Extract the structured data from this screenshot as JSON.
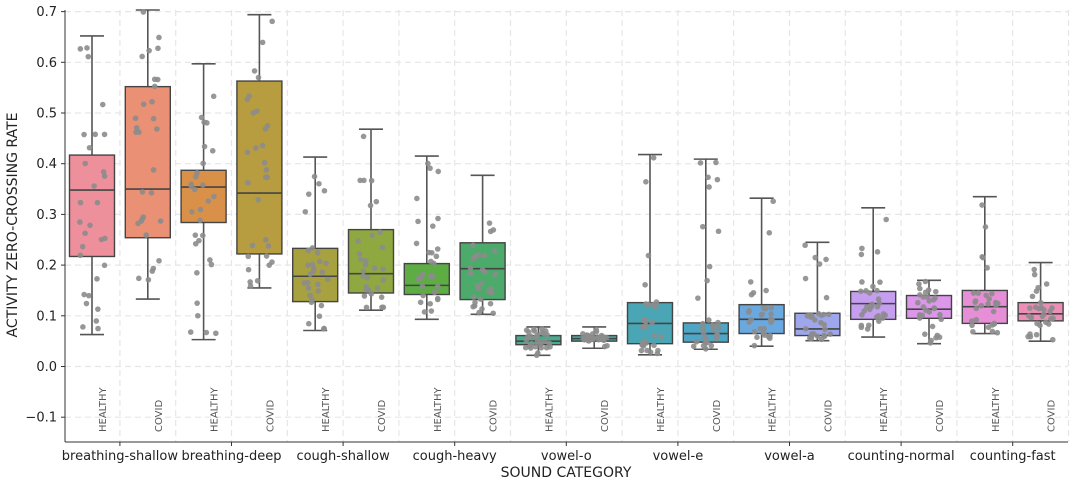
{
  "chart_data": {
    "type": "box",
    "xlabel": "SOUND CATEGORY",
    "ylabel": "ACTIVITY ZERO-CROSSING RATE",
    "ylim": [
      -0.15,
      0.71
    ],
    "yticks": [
      -0.1,
      0.0,
      0.1,
      0.2,
      0.3,
      0.4,
      0.5,
      0.6,
      0.7
    ],
    "ytick_labels": [
      "−0.1",
      "0.0",
      "0.1",
      "0.2",
      "0.3",
      "0.4",
      "0.5",
      "0.6",
      "0.7"
    ],
    "grid": true,
    "categories": [
      "breathing-shallow",
      "breathing-deep",
      "cough-shallow",
      "cough-heavy",
      "vowel-o",
      "vowel-e",
      "vowel-a",
      "counting-normal",
      "counting-fast"
    ],
    "group_labels": [
      "HEALTHY",
      "COVID"
    ],
    "series": [
      {
        "name": "breathing-shallow HEALTHY",
        "color": "#ee8f9c",
        "whisker_low": 0.063,
        "q1": 0.217,
        "median": 0.348,
        "q3": 0.417,
        "whisker_high": 0.652
      },
      {
        "name": "breathing-shallow COVID",
        "color": "#ea9075",
        "whisker_low": 0.133,
        "q1": 0.254,
        "median": 0.35,
        "q3": 0.552,
        "whisker_high": 0.71
      },
      {
        "name": "breathing-deep HEALTHY",
        "color": "#d9914a",
        "whisker_low": 0.053,
        "q1": 0.284,
        "median": 0.354,
        "q3": 0.387,
        "whisker_high": 0.597
      },
      {
        "name": "breathing-deep COVID",
        "color": "#b89c40",
        "whisker_low": 0.155,
        "q1": 0.222,
        "median": 0.342,
        "q3": 0.563,
        "whisker_high": 0.694
      },
      {
        "name": "cough-shallow HEALTHY",
        "color": "#a8a140",
        "whisker_low": 0.071,
        "q1": 0.128,
        "median": 0.178,
        "q3": 0.233,
        "whisker_high": 0.413
      },
      {
        "name": "cough-shallow COVID",
        "color": "#8fa840",
        "whisker_low": 0.111,
        "q1": 0.145,
        "median": 0.183,
        "q3": 0.27,
        "whisker_high": 0.468
      },
      {
        "name": "cough-heavy HEALTHY",
        "color": "#5eac44",
        "whisker_low": 0.093,
        "q1": 0.142,
        "median": 0.16,
        "q3": 0.203,
        "whisker_high": 0.415
      },
      {
        "name": "cough-heavy COVID",
        "color": "#4caa6a",
        "whisker_low": 0.103,
        "q1": 0.132,
        "median": 0.193,
        "q3": 0.244,
        "whisker_high": 0.377
      },
      {
        "name": "vowel-o HEALTHY",
        "color": "#4aa98e",
        "whisker_low": 0.022,
        "q1": 0.043,
        "median": 0.05,
        "q3": 0.061,
        "whisker_high": 0.078
      },
      {
        "name": "vowel-o COVID",
        "color": "#48a8a2",
        "whisker_low": 0.036,
        "q1": 0.05,
        "median": 0.055,
        "q3": 0.061,
        "whisker_high": 0.078
      },
      {
        "name": "vowel-e HEALTHY",
        "color": "#4aa6b4",
        "whisker_low": 0.023,
        "q1": 0.045,
        "median": 0.085,
        "q3": 0.126,
        "whisker_high": 0.418
      },
      {
        "name": "vowel-e COVID",
        "color": "#4ea5c4",
        "whisker_low": 0.034,
        "q1": 0.048,
        "median": 0.065,
        "q3": 0.086,
        "whisker_high": 0.409
      },
      {
        "name": "vowel-a HEALTHY",
        "color": "#6aa8e0",
        "whisker_low": 0.04,
        "q1": 0.065,
        "median": 0.093,
        "q3": 0.122,
        "whisker_high": 0.332
      },
      {
        "name": "vowel-a COVID",
        "color": "#9ea6ec",
        "whisker_low": 0.051,
        "q1": 0.061,
        "median": 0.074,
        "q3": 0.105,
        "whisker_high": 0.245
      },
      {
        "name": "counting-normal HEALTHY",
        "color": "#c59eef",
        "whisker_low": 0.058,
        "q1": 0.093,
        "median": 0.124,
        "q3": 0.148,
        "whisker_high": 0.313
      },
      {
        "name": "counting-normal COVID",
        "color": "#dc97ea",
        "whisker_low": 0.045,
        "q1": 0.095,
        "median": 0.113,
        "q3": 0.14,
        "whisker_high": 0.17
      },
      {
        "name": "counting-fast HEALTHY",
        "color": "#e78fd6",
        "whisker_low": 0.065,
        "q1": 0.085,
        "median": 0.118,
        "q3": 0.15,
        "whisker_high": 0.335
      },
      {
        "name": "counting-fast COVID",
        "color": "#ec8fb7",
        "whisker_low": 0.05,
        "q1": 0.09,
        "median": 0.104,
        "q3": 0.126,
        "whisker_high": 0.205
      }
    ]
  }
}
